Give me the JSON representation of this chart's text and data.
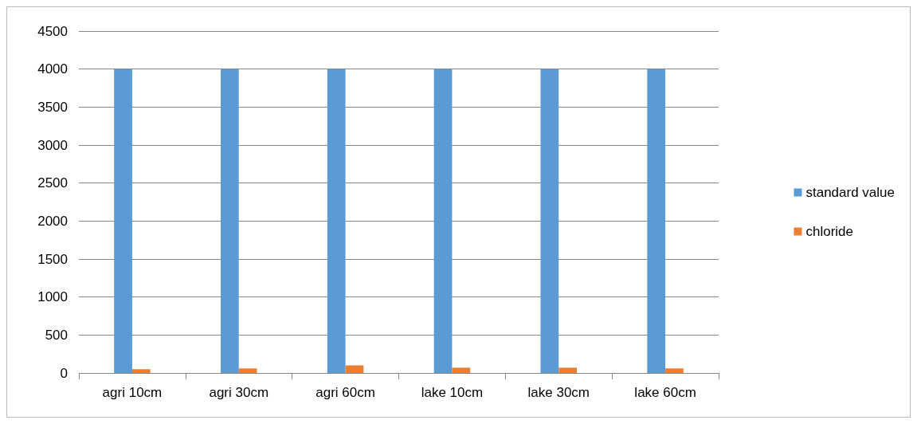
{
  "chart_data": {
    "type": "bar",
    "categories": [
      "agri 10cm",
      "agri 30cm",
      "agri 60cm",
      "lake 10cm",
      "lake 30cm",
      "lake 60cm"
    ],
    "series": [
      {
        "name": "standard value",
        "color": "#5b9bd5",
        "values": [
          4000,
          4000,
          4000,
          4000,
          4000,
          4000
        ]
      },
      {
        "name": "chloride",
        "color": "#ed7d31",
        "values": [
          50,
          60,
          100,
          70,
          70,
          60
        ]
      }
    ],
    "ylim": [
      0,
      4500
    ],
    "yticks": [
      0,
      500,
      1000,
      1500,
      2000,
      2500,
      3000,
      3500,
      4000,
      4500
    ],
    "grid": "y",
    "legend": "right"
  }
}
